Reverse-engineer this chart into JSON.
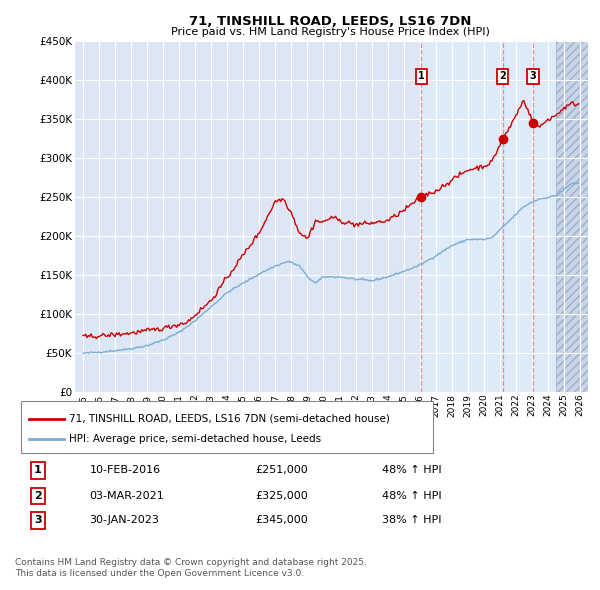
{
  "title": "71, TINSHILL ROAD, LEEDS, LS16 7DN",
  "subtitle": "Price paid vs. HM Land Registry's House Price Index (HPI)",
  "legend_line1": "71, TINSHILL ROAD, LEEDS, LS16 7DN (semi-detached house)",
  "legend_line2": "HPI: Average price, semi-detached house, Leeds",
  "footer": "Contains HM Land Registry data © Crown copyright and database right 2025.\nThis data is licensed under the Open Government Licence v3.0.",
  "transactions": [
    {
      "num": 1,
      "date": "10-FEB-2016",
      "price": "£251,000",
      "hpi": "48% ↑ HPI"
    },
    {
      "num": 2,
      "date": "03-MAR-2021",
      "price": "£325,000",
      "hpi": "48% ↑ HPI"
    },
    {
      "num": 3,
      "date": "30-JAN-2023",
      "price": "£345,000",
      "hpi": "38% ↑ HPI"
    }
  ],
  "transaction_years": [
    2016.11,
    2021.17,
    2023.08
  ],
  "transaction_prices": [
    251000,
    325000,
    345000
  ],
  "ylim": [
    0,
    450000
  ],
  "xlim_start": 1994.5,
  "xlim_end": 2026.5,
  "bg_color": "#dce6f5",
  "plot_bg": "#dce6f5",
  "highlight_bg": "#e8eff8",
  "red_color": "#cc0000",
  "blue_color": "#7aadd4",
  "grid_color": "#ffffff",
  "hatch_color": "#c8d4e8"
}
